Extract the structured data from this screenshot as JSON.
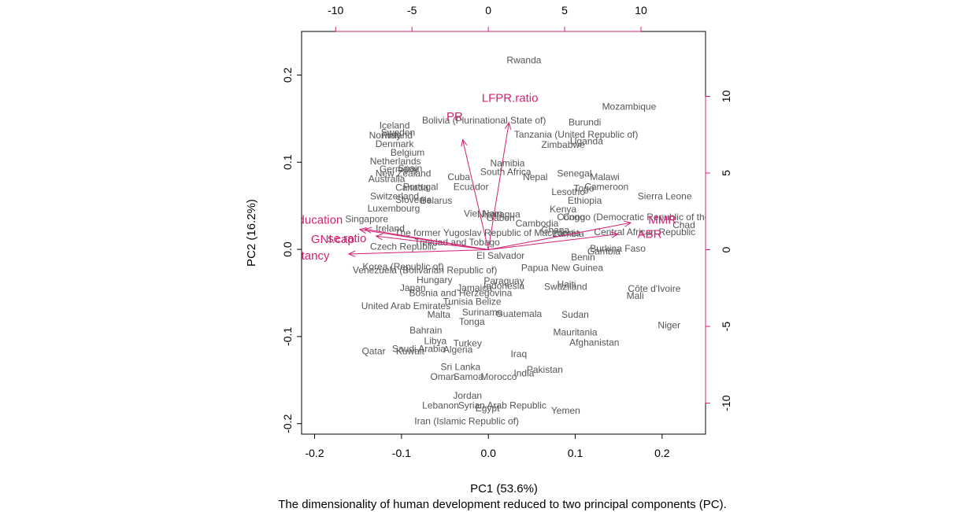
{
  "chart_data": {
    "type": "scatter",
    "subtype": "biplot",
    "caption": "The dimensionality of human development reduced to two principal components (PC).",
    "xlabel": "PC1 (53.6%)",
    "ylabel": "PC2 (16.2%)",
    "xlim": [
      -0.215,
      0.25
    ],
    "ylim": [
      -0.212,
      0.25
    ],
    "x_ticks": [
      "-0.2",
      "-0.1",
      "0.0",
      "0.1",
      "0.2"
    ],
    "y_ticks": [
      "-0.2",
      "-0.1",
      "0.0",
      "0.1",
      "0.2"
    ],
    "loadings_scale": {
      "xlim": [
        -12.23,
        14.23
      ],
      "ylim": [
        -12.02,
        14.23
      ],
      "x_ticks": [
        "-10",
        "-5",
        "0",
        "5",
        "10"
      ],
      "y_ticks": [
        "-10",
        "-5",
        "0",
        "5",
        "10"
      ]
    },
    "point_color": "#555555",
    "arrow_color": "#d41f73",
    "observations": [
      {
        "label": "Rwanda",
        "x": 0.041,
        "y": 0.217
      },
      {
        "label": "Mozambique",
        "x": 0.162,
        "y": 0.164
      },
      {
        "label": "Iceland",
        "x": -0.108,
        "y": 0.142
      },
      {
        "label": "Sweden",
        "x": -0.104,
        "y": 0.134
      },
      {
        "label": "Norway",
        "x": -0.119,
        "y": 0.131
      },
      {
        "label": "Finland",
        "x": -0.105,
        "y": 0.131
      },
      {
        "label": "Denmark",
        "x": -0.108,
        "y": 0.121
      },
      {
        "label": "Bolivia (Plurinational State of)",
        "x": -0.005,
        "y": 0.148
      },
      {
        "label": "Burundi",
        "x": 0.111,
        "y": 0.146
      },
      {
        "label": "Tanzania (United Republic of)",
        "x": 0.101,
        "y": 0.132
      },
      {
        "label": "Uganda",
        "x": 0.113,
        "y": 0.124
      },
      {
        "label": "Zimbabwe",
        "x": 0.086,
        "y": 0.12
      },
      {
        "label": "Belgium",
        "x": -0.093,
        "y": 0.111
      },
      {
        "label": "Netherlands",
        "x": -0.107,
        "y": 0.101
      },
      {
        "label": "Spain",
        "x": -0.09,
        "y": 0.093
      },
      {
        "label": "Germany",
        "x": -0.103,
        "y": 0.092
      },
      {
        "label": "New Zealand",
        "x": -0.098,
        "y": 0.087
      },
      {
        "label": "Australia",
        "x": -0.117,
        "y": 0.081
      },
      {
        "label": "Namibia",
        "x": 0.022,
        "y": 0.099
      },
      {
        "label": "South Africa",
        "x": 0.02,
        "y": 0.089
      },
      {
        "label": "Senegal",
        "x": 0.099,
        "y": 0.087
      },
      {
        "label": "Malawi",
        "x": 0.134,
        "y": 0.083
      },
      {
        "label": "Cuba",
        "x": -0.034,
        "y": 0.083
      },
      {
        "label": "Nepal",
        "x": 0.054,
        "y": 0.083
      },
      {
        "label": "Portugal",
        "x": -0.078,
        "y": 0.072
      },
      {
        "label": "Canada",
        "x": -0.088,
        "y": 0.071
      },
      {
        "label": "Ecuador",
        "x": -0.02,
        "y": 0.072
      },
      {
        "label": "Togo",
        "x": 0.11,
        "y": 0.07
      },
      {
        "label": "Cameroon",
        "x": 0.136,
        "y": 0.072
      },
      {
        "label": "Lesotho",
        "x": 0.092,
        "y": 0.066
      },
      {
        "label": "Sierra Leone",
        "x": 0.203,
        "y": 0.061
      },
      {
        "label": "Switzerland",
        "x": -0.108,
        "y": 0.061
      },
      {
        "label": "Slovenia",
        "x": -0.086,
        "y": 0.057
      },
      {
        "label": "Belarus",
        "x": -0.06,
        "y": 0.056
      },
      {
        "label": "Ethiopia",
        "x": 0.111,
        "y": 0.056
      },
      {
        "label": "Kenya",
        "x": 0.086,
        "y": 0.046
      },
      {
        "label": "Luxembourg",
        "x": -0.109,
        "y": 0.047
      },
      {
        "label": "Viet Nam",
        "x": -0.006,
        "y": 0.041
      },
      {
        "label": "Nicaragua",
        "x": 0.012,
        "y": 0.04
      },
      {
        "label": "Congo (Democratic Republic of the)",
        "x": 0.172,
        "y": 0.037
      },
      {
        "label": "Congo",
        "x": 0.095,
        "y": 0.037
      },
      {
        "label": "Singapore",
        "x": -0.14,
        "y": 0.035
      },
      {
        "label": "Gabon",
        "x": 0.014,
        "y": 0.036
      },
      {
        "label": "Cambodia",
        "x": 0.056,
        "y": 0.03
      },
      {
        "label": "Chad",
        "x": 0.225,
        "y": 0.028
      },
      {
        "label": "Central African Republic",
        "x": 0.18,
        "y": 0.02
      },
      {
        "label": "Ghana",
        "x": 0.077,
        "y": 0.022
      },
      {
        "label": "Gambia",
        "x": 0.133,
        "y": -0.002
      },
      {
        "label": "Zambia",
        "x": 0.092,
        "y": 0.018
      },
      {
        "label": "Ireland",
        "x": -0.113,
        "y": 0.024
      },
      {
        "label": "The former Yugoslav Republic of Macedonia",
        "x": -0.001,
        "y": 0.019
      },
      {
        "label": "Burkina Faso",
        "x": 0.149,
        "y": 0.001
      },
      {
        "label": "Benin",
        "x": 0.109,
        "y": -0.009
      },
      {
        "label": "Trinidad and Tobago",
        "x": -0.036,
        "y": 0.008
      },
      {
        "label": "Czech Republic",
        "x": -0.098,
        "y": 0.003
      },
      {
        "label": "El Salvador",
        "x": 0.014,
        "y": -0.007
      },
      {
        "label": "Papua New Guinea",
        "x": 0.085,
        "y": -0.021
      },
      {
        "label": "Korea (Republic of)",
        "x": -0.098,
        "y": -0.02
      },
      {
        "label": "Venezuela (Bolivarian Republic of)",
        "x": -0.073,
        "y": -0.024
      },
      {
        "label": "Hungary",
        "x": -0.062,
        "y": -0.035
      },
      {
        "label": "Paraguay",
        "x": 0.018,
        "y": -0.036
      },
      {
        "label": "Indonesia",
        "x": 0.018,
        "y": -0.042
      },
      {
        "label": "Jamaica",
        "x": -0.016,
        "y": -0.044
      },
      {
        "label": "Haiti",
        "x": 0.09,
        "y": -0.04
      },
      {
        "label": "Swaziland",
        "x": 0.089,
        "y": -0.043
      },
      {
        "label": "Côte d'Ivoire",
        "x": 0.191,
        "y": -0.045
      },
      {
        "label": "Mali",
        "x": 0.169,
        "y": -0.053
      },
      {
        "label": "Japan",
        "x": -0.087,
        "y": -0.044
      },
      {
        "label": "Bosnia and Herzegovina",
        "x": -0.032,
        "y": -0.05
      },
      {
        "label": "Belize",
        "x": 0.0,
        "y": -0.06
      },
      {
        "label": "Tunisia",
        "x": -0.035,
        "y": -0.06
      },
      {
        "label": "United Arab Emirates",
        "x": -0.095,
        "y": -0.065
      },
      {
        "label": "Suriname",
        "x": -0.007,
        "y": -0.072
      },
      {
        "label": "Guatemala",
        "x": 0.035,
        "y": -0.074
      },
      {
        "label": "Sudan",
        "x": 0.1,
        "y": -0.075
      },
      {
        "label": "Malta",
        "x": -0.057,
        "y": -0.075
      },
      {
        "label": "Tonga",
        "x": -0.019,
        "y": -0.083
      },
      {
        "label": "Niger",
        "x": 0.208,
        "y": -0.087
      },
      {
        "label": "Bahrain",
        "x": -0.072,
        "y": -0.093
      },
      {
        "label": "Mauritania",
        "x": 0.1,
        "y": -0.095
      },
      {
        "label": "Libya",
        "x": -0.061,
        "y": -0.105
      },
      {
        "label": "Turkey",
        "x": -0.024,
        "y": -0.108
      },
      {
        "label": "Afghanistan",
        "x": 0.122,
        "y": -0.107
      },
      {
        "label": "Saudi Arabia",
        "x": -0.08,
        "y": -0.114
      },
      {
        "label": "Algeria",
        "x": -0.035,
        "y": -0.115
      },
      {
        "label": "Kuwait",
        "x": -0.09,
        "y": -0.117
      },
      {
        "label": "Qatar",
        "x": -0.132,
        "y": -0.117
      },
      {
        "label": "Iraq",
        "x": 0.035,
        "y": -0.12
      },
      {
        "label": "Sri Lanka",
        "x": -0.032,
        "y": -0.135
      },
      {
        "label": "Pakistan",
        "x": 0.065,
        "y": -0.138
      },
      {
        "label": "India",
        "x": 0.041,
        "y": -0.142
      },
      {
        "label": "Morocco",
        "x": 0.012,
        "y": -0.146
      },
      {
        "label": "Samoa",
        "x": -0.023,
        "y": -0.146
      },
      {
        "label": "Oman",
        "x": -0.052,
        "y": -0.146
      },
      {
        "label": "Jordan",
        "x": -0.024,
        "y": -0.168
      },
      {
        "label": "Lebanon",
        "x": -0.055,
        "y": -0.179
      },
      {
        "label": "Syrian Arab Republic",
        "x": 0.016,
        "y": -0.179
      },
      {
        "label": "Egypt",
        "x": -0.001,
        "y": -0.182
      },
      {
        "label": "Yemen",
        "x": 0.089,
        "y": -0.185
      },
      {
        "label": "Iran (Islamic Republic of)",
        "x": -0.025,
        "y": -0.197
      }
    ],
    "variables": [
      {
        "label": "LFPR.ratio",
        "x": 1.35,
        "y": 8.28,
        "label_x": 1.42,
        "label_y": 9.9
      },
      {
        "label": "PR",
        "x": -1.68,
        "y": 7.18,
        "label_x": -2.2,
        "label_y": 8.69
      },
      {
        "label": "MMR",
        "x": 9.33,
        "y": 1.76,
        "label_x": 11.4,
        "label_y": 1.95
      },
      {
        "label": "ABR",
        "x": 8.49,
        "y": 1.02,
        "label_x": 10.57,
        "label_y": 1.02
      },
      {
        "label": "Edu2.FM.ratio",
        "x": -8.07,
        "y": 1.34,
        "label_x": -9.25,
        "label_y": 0.74
      },
      {
        "label": "GNI.cap",
        "x": -7.35,
        "y": 0.89,
        "label_x": -10.2,
        "label_y": 0.7
      },
      {
        "label": "Exp.Edu",
        "x": -8.42,
        "y": 1.32,
        "label_x": -11.9,
        "label_y": 1.95
      },
      {
        "label": "Life.Exp",
        "x": -9.14,
        "y": -0.28,
        "label_x": -12.4,
        "label_y": -0.38
      }
    ],
    "variable_label_texts": {
      "Edu2.FM.ratio": "se.ratio",
      "Exp.Edu": "ted.Education",
      "Life.Exp": "Expectancy",
      "GNI.cap": "GNI.cap",
      "LFPR.ratio": "LFPR.ratio",
      "PR": "PR",
      "MMR": "MMR",
      "ABR": "ABR"
    }
  }
}
